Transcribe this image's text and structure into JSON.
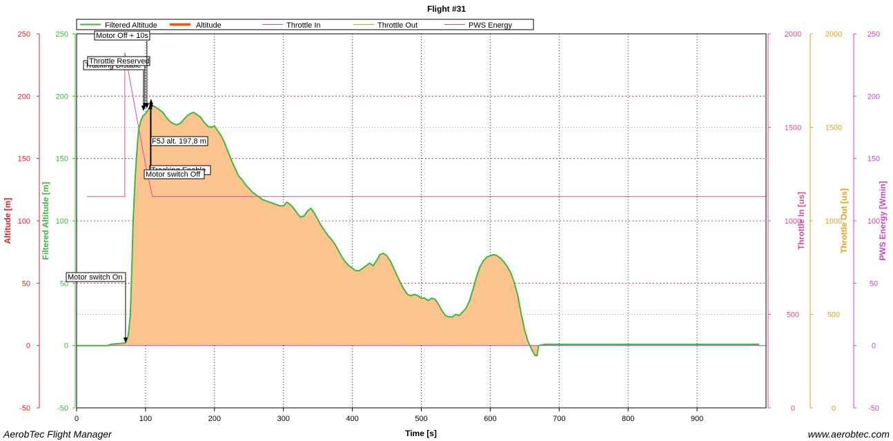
{
  "footer": {
    "app_name": "AerobTec Flight Manager",
    "website": "www.aerobtec.com"
  },
  "chart_data": {
    "type": "area",
    "title": "Flight #31",
    "xlabel": "Time [s]",
    "xlim": [
      0,
      1000
    ],
    "x_ticks": [
      0,
      100,
      200,
      300,
      400,
      500,
      600,
      700,
      800,
      900
    ],
    "grid": true,
    "legend_position": "top-left",
    "legend": [
      "Filtered Altitude",
      "Altitude",
      "Throttle In",
      "Throttle Out",
      "PWS Energy"
    ],
    "colors": {
      "filtered_altitude": "#3cb83c",
      "altitude_fill": "#fbc48e",
      "altitude_line": "#e65a1e",
      "throttle_in": "#e0479a",
      "throttle_out": "#e0a21a",
      "pws_energy": "#cc44cc",
      "altitude_axis": "#e0202a",
      "grid_red": "#d03030",
      "grid_orange": "#e0a030"
    },
    "y_axes": [
      {
        "label": "Altitude [m]",
        "range": [
          -50,
          250
        ],
        "ticks": [
          -50,
          0,
          50,
          100,
          150,
          200,
          250
        ],
        "color": "#e0202a",
        "side": "left"
      },
      {
        "label": "Filtered Altitude [m]",
        "range": [
          -50,
          250
        ],
        "ticks": [
          -50,
          0,
          50,
          100,
          150,
          200,
          250
        ],
        "color": "#3cb83c",
        "side": "left"
      },
      {
        "label": "Throttle In [us]",
        "range": [
          0,
          2000
        ],
        "ticks": [
          0,
          500,
          1000,
          1500,
          2000
        ],
        "color": "#e0479a",
        "side": "right"
      },
      {
        "label": "Throttle Out [us]",
        "range": [
          0,
          2000
        ],
        "ticks": [
          0,
          500,
          1000,
          1500,
          2000
        ],
        "color": "#e0a21a",
        "side": "right"
      },
      {
        "label": "PWS Energy [Wmin]",
        "range": [
          -50,
          250
        ],
        "ticks": [
          -50,
          0,
          50,
          100,
          150,
          200,
          250
        ],
        "color": "#cc44cc",
        "side": "right"
      }
    ],
    "series": [
      {
        "name": "Filtered Altitude",
        "x": [
          0,
          20,
          45,
          50,
          70,
          72,
          75,
          78,
          80,
          82,
          85,
          88,
          90,
          93,
          96,
          100,
          105,
          108,
          112,
          118,
          125,
          130,
          135,
          140,
          145,
          150,
          155,
          160,
          165,
          170,
          175,
          180,
          185,
          190,
          195,
          200,
          205,
          210,
          215,
          220,
          225,
          230,
          235,
          240,
          245,
          250,
          255,
          260,
          265,
          270,
          275,
          280,
          285,
          290,
          295,
          300,
          305,
          310,
          315,
          320,
          325,
          330,
          335,
          340,
          345,
          350,
          355,
          360,
          365,
          370,
          375,
          380,
          385,
          390,
          395,
          400,
          405,
          410,
          415,
          420,
          425,
          430,
          435,
          440,
          445,
          450,
          455,
          460,
          465,
          470,
          475,
          480,
          485,
          490,
          495,
          500,
          505,
          510,
          515,
          520,
          525,
          530,
          535,
          540,
          545,
          550,
          555,
          560,
          565,
          570,
          575,
          580,
          585,
          590,
          595,
          600,
          605,
          610,
          615,
          620,
          625,
          630,
          635,
          640,
          645,
          650,
          655,
          660,
          665,
          668,
          670,
          680,
          700,
          750,
          800,
          850,
          900,
          950,
          990
        ],
        "values": [
          0,
          0,
          0,
          1,
          2,
          3,
          8,
          25,
          60,
          100,
          135,
          160,
          173,
          180,
          184,
          186,
          190,
          193,
          192,
          190,
          187,
          183,
          180,
          178,
          177,
          178,
          181,
          184,
          186,
          187,
          185,
          183,
          179,
          176,
          175,
          176,
          172,
          168,
          162,
          155,
          148,
          142,
          136,
          133,
          129,
          126,
          123,
          121,
          119,
          117,
          116,
          115,
          114,
          113,
          112,
          112,
          115,
          113,
          110,
          106,
          103,
          104,
          108,
          110,
          106,
          101,
          96,
          92,
          88,
          85,
          81,
          76,
          71,
          67,
          64,
          62,
          60,
          60,
          62,
          64,
          66,
          64,
          68,
          73,
          74,
          72,
          68,
          62,
          56,
          50,
          45,
          41,
          40,
          41,
          40,
          38,
          38,
          36,
          38,
          37,
          33,
          28,
          24,
          23,
          23,
          25,
          24,
          27,
          30,
          36,
          45,
          55,
          63,
          68,
          71,
          72,
          73,
          72,
          70,
          67,
          63,
          58,
          50,
          40,
          25,
          12,
          3,
          -3,
          -8,
          -8,
          0,
          1,
          1,
          1,
          1,
          1,
          1,
          1,
          1
        ]
      },
      {
        "name": "Throttle In",
        "x": [
          15,
          70,
          70,
          100,
          110,
          1000
        ],
        "values": [
          1130,
          1130,
          1900,
          1300,
          1130,
          1130
        ]
      }
    ],
    "annotations": [
      {
        "text": "Motor switch On",
        "x": 71,
        "y": 2
      },
      {
        "text": "Tracking Disable",
        "x": 97,
        "y": 188
      },
      {
        "text": "Throttle Reserved",
        "x": 99,
        "y": 190
      },
      {
        "text": "Motor Off + 10s",
        "x": 102,
        "y": 190
      },
      {
        "text": "F5J alt. 197,8 m",
        "x": 108,
        "y": 197.8
      },
      {
        "text": "Tracking Enable",
        "x": 108,
        "y": 196
      },
      {
        "text": "Motor switch Off",
        "x": 107,
        "y": 194
      }
    ]
  }
}
